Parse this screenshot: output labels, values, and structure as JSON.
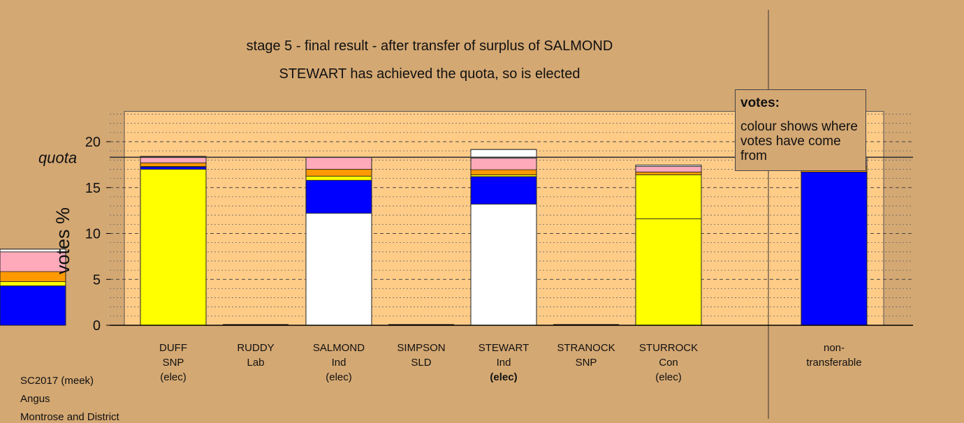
{
  "title": "stage 5 - final result - after transfer of surplus of SALMOND",
  "subtitle": "STEWART has achieved the quota, so is elected",
  "footer": [
    "SC2017 (meek)",
    "Angus",
    "Montrose and District"
  ],
  "legend": {
    "title": "votes:",
    "text": "colour shows where votes have come from"
  },
  "colors": {
    "background": "#d4a873",
    "plot_area": "#ffcc88",
    "DUFF": "#ffff00",
    "RUDDY": "#ff0000",
    "SALMOND": "#ffffff",
    "SIMPSON": "#ff9900",
    "STEWART": "#ffffff",
    "STRANOCK": "#ffff00",
    "STURROCK": "#0000ff",
    "other": "#ffaabb"
  },
  "chart_data": {
    "type": "bar",
    "stacked": true,
    "ylabel": "votes %",
    "ylim": [
      0,
      23.3
    ],
    "yticks": [
      0,
      5,
      10,
      15,
      20
    ],
    "quota": 18.3,
    "quota_label": "quota",
    "grid": "dashed horizontal",
    "legend_placement": "top-right",
    "categories": [
      {
        "lines": [
          "DUFF",
          "SNP",
          "(elec)"
        ],
        "bold_third": false
      },
      {
        "lines": [
          "RUDDY",
          "Lab",
          ""
        ],
        "bold_third": false
      },
      {
        "lines": [
          "SALMOND",
          "Ind",
          "(elec)"
        ],
        "bold_third": false
      },
      {
        "lines": [
          "SIMPSON",
          "SLD",
          ""
        ],
        "bold_third": false
      },
      {
        "lines": [
          "STEWART",
          "Ind",
          "(elec)"
        ],
        "bold_third": true
      },
      {
        "lines": [
          "STRANOCK",
          "SNP",
          ""
        ],
        "bold_third": false
      },
      {
        "lines": [
          "STURROCK",
          "Con",
          "(elec)"
        ],
        "bold_third": false
      },
      {
        "lines": [
          "non-",
          "transferable",
          ""
        ],
        "bold_third": false
      }
    ],
    "stacks": [
      [
        {
          "from": "DUFF",
          "value": 17.0,
          "color": "#ffff00"
        },
        {
          "from": "STURROCK",
          "value": 0.25,
          "color": "#0000ff"
        },
        {
          "from": "STRANOCK",
          "value": 0.05,
          "color": "#ffff00"
        },
        {
          "from": "SIMPSON",
          "value": 0.4,
          "color": "#ff9900"
        },
        {
          "from": "RUDDY",
          "value": 0.6,
          "color": "#ffaabb"
        },
        {
          "from": "SALMOND",
          "value": 0.1,
          "color": "#ffffff"
        }
      ],
      [],
      [
        {
          "from": "SALMOND",
          "value": 12.2,
          "color": "#ffffff"
        },
        {
          "from": "STURROCK",
          "value": 3.6,
          "color": "#0000ff"
        },
        {
          "from": "DUFF",
          "value": 0.45,
          "color": "#ffff00"
        },
        {
          "from": "SIMPSON",
          "value": 0.75,
          "color": "#ff9900"
        },
        {
          "from": "RUDDY",
          "value": 1.3,
          "color": "#ffaabb"
        }
      ],
      [],
      [
        {
          "from": "STEWART",
          "value": 13.2,
          "color": "#ffffff"
        },
        {
          "from": "STURROCK",
          "value": 3.0,
          "color": "#0000ff"
        },
        {
          "from": "DUFF",
          "value": 0.2,
          "color": "#ffff00"
        },
        {
          "from": "SIMPSON",
          "value": 0.55,
          "color": "#ff9900"
        },
        {
          "from": "RUDDY",
          "value": 1.25,
          "color": "#ffaabb"
        },
        {
          "from": "SALMOND",
          "value": 0.95,
          "color": "#ffffff"
        }
      ],
      [],
      [
        {
          "from": "STRANOCK",
          "value": 11.6,
          "color": "#ffff00"
        },
        {
          "from": "DUFF",
          "value": 4.8,
          "color": "#ffff00"
        },
        {
          "from": "SIMPSON",
          "value": 0.3,
          "color": "#ff9900"
        },
        {
          "from": "RUDDY",
          "value": 0.6,
          "color": "#ffaabb"
        },
        {
          "from": "SALMOND",
          "value": 0.15,
          "color": "#ffffff"
        }
      ],
      [
        {
          "from": "STURROCK",
          "value": 16.7,
          "color": "#0000ff"
        },
        {
          "from": "SIMPSON",
          "value": 0.6,
          "color": "#ff9900"
        },
        {
          "from": "RUDDY",
          "value": 0.7,
          "color": "#ffaabb"
        },
        {
          "from": "SALMOND",
          "value": 0.25,
          "color": "#ffffff"
        }
      ],
      [
        {
          "from": "STURROCK",
          "value": 4.3,
          "color": "#0000ff"
        },
        {
          "from": "DUFF",
          "value": 0.45,
          "color": "#ffff00"
        },
        {
          "from": "SIMPSON",
          "value": 1.1,
          "color": "#ff9900"
        },
        {
          "from": "RUDDY",
          "value": 2.15,
          "color": "#ffaabb"
        },
        {
          "from": "SALMOND",
          "value": 0.3,
          "color": "#ffffff"
        }
      ]
    ]
  }
}
